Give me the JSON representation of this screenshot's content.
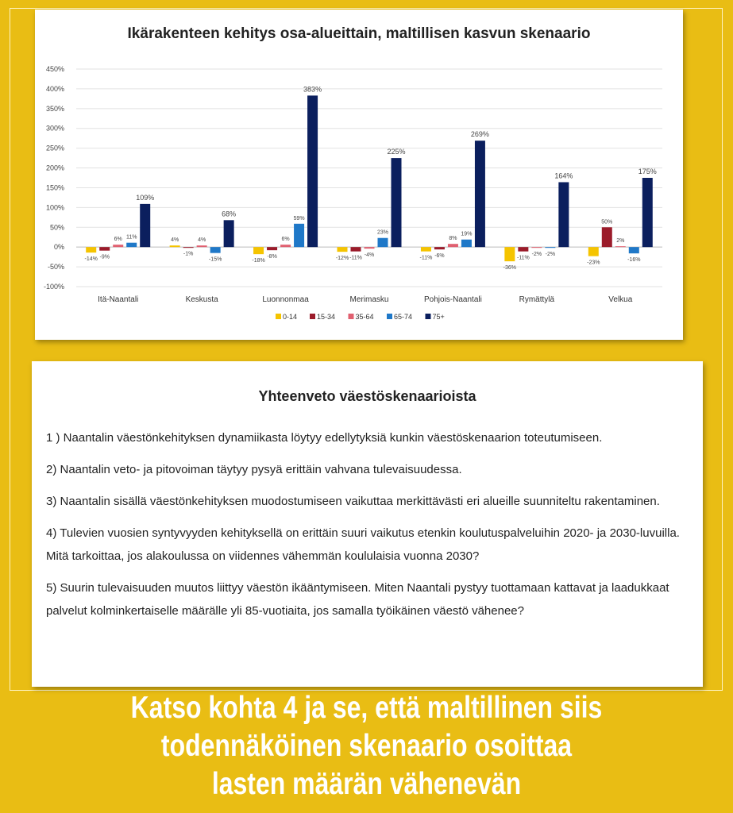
{
  "chart_data": {
    "type": "bar",
    "title": "Ikärakenteen kehitys osa-alueittain, maltillisen kasvun skenaario",
    "categories": [
      "Itä-Naantali",
      "Keskusta",
      "Luonnonmaa",
      "Merimasku",
      "Pohjois-Naantali",
      "Rymättylä",
      "Velkua"
    ],
    "series": [
      {
        "name": "0-14",
        "color": "#F5C400",
        "values": [
          -14,
          4,
          -18,
          -12,
          -11,
          -36,
          -23
        ]
      },
      {
        "name": "15-34",
        "color": "#9B1B2A",
        "values": [
          -9,
          -1,
          -8,
          -11,
          -6,
          -11,
          50
        ]
      },
      {
        "name": "35-64",
        "color": "#E06070",
        "values": [
          6,
          4,
          6,
          -4,
          8,
          -2,
          2
        ]
      },
      {
        "name": "65-74",
        "color": "#1F78C8",
        "values": [
          11,
          -15,
          59,
          23,
          19,
          -2,
          -16
        ]
      },
      {
        "name": "75+",
        "color": "#0B1F5E",
        "values": [
          109,
          68,
          383,
          225,
          269,
          164,
          175
        ]
      }
    ],
    "yticks": [
      "450%",
      "400%",
      "350%",
      "300%",
      "250%",
      "200%",
      "150%",
      "100%",
      "50%",
      "0%",
      "-50%",
      "-100%"
    ],
    "ylim": [
      -100,
      450
    ],
    "xlabel": "",
    "ylabel": "",
    "grid": true,
    "legend": "bottom"
  },
  "summary": {
    "title": "Yhteenveto väestöskenaarioista",
    "points": [
      "1 ) Naantalin väestönkehityksen dynamiikasta löytyy edellytyksiä kunkin väestöskenaarion toteutumiseen.",
      "2) Naantalin veto- ja pitovoiman täytyy pysyä erittäin vahvana tulevaisuudessa.",
      "3) Naantalin sisällä väestönkehityksen muodostumiseen vaikuttaa merkittävästi eri alueille suunniteltu rakentaminen.",
      "4) Tulevien vuosien syntyvyyden kehityksellä on erittäin suuri vaikutus etenkin koulutuspalveluihin 2020- ja 2030-luvuilla. Mitä tarkoittaa, jos alakoulussa on viidennes vähemmän koululaisia vuonna 2030?",
      "5) Suurin tulevaisuuden muutos liittyy väestön ikääntymiseen. Miten Naantali pystyy tuottamaan kattavat ja laadukkaat palvelut kolminkertaiselle määrälle yli 85-vuotiaita, jos samalla työikäinen väestö vähenee?"
    ]
  },
  "caption": {
    "lines": [
      "Katso kohta 4 ja se, että maltillinen siis",
      "todennäköinen skenaario osoittaa",
      "lasten määrän vähenevän"
    ]
  }
}
